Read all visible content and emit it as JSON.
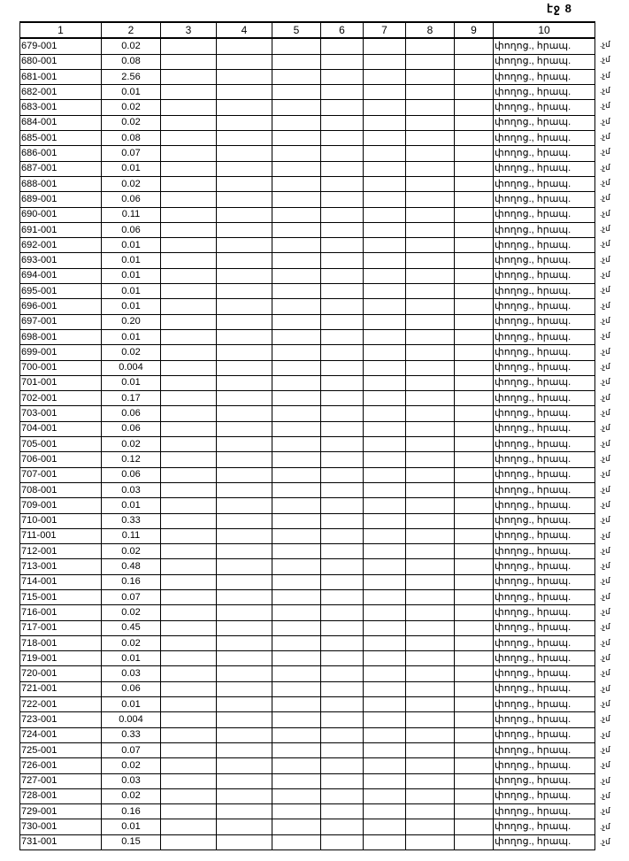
{
  "page_label": "էջ 8",
  "columns": [
    "1",
    "2",
    "3",
    "4",
    "5",
    "6",
    "7",
    "8",
    "9",
    "10"
  ],
  "row_text_col10": "փողոց., հրապ.",
  "margin_mark": ".չմ",
  "rows": [
    [
      "679-001",
      "0.02"
    ],
    [
      "680-001",
      "0.08"
    ],
    [
      "681-001",
      "2.56"
    ],
    [
      "682-001",
      "0.01"
    ],
    [
      "683-001",
      "0.02"
    ],
    [
      "684-001",
      "0.02"
    ],
    [
      "685-001",
      "0.08"
    ],
    [
      "686-001",
      "0.07"
    ],
    [
      "687-001",
      "0.01"
    ],
    [
      "688-001",
      "0.02"
    ],
    [
      "689-001",
      "0.06"
    ],
    [
      "690-001",
      "0.11"
    ],
    [
      "691-001",
      "0.06"
    ],
    [
      "692-001",
      "0.01"
    ],
    [
      "693-001",
      "0.01"
    ],
    [
      "694-001",
      "0.01"
    ],
    [
      "695-001",
      "0.01"
    ],
    [
      "696-001",
      "0.01"
    ],
    [
      "697-001",
      "0.20"
    ],
    [
      "698-001",
      "0.01"
    ],
    [
      "699-001",
      "0.02"
    ],
    [
      "700-001",
      "0.004"
    ],
    [
      "701-001",
      "0.01"
    ],
    [
      "702-001",
      "0.17"
    ],
    [
      "703-001",
      "0.06"
    ],
    [
      "704-001",
      "0.06"
    ],
    [
      "705-001",
      "0.02"
    ],
    [
      "706-001",
      "0.12"
    ],
    [
      "707-001",
      "0.06"
    ],
    [
      "708-001",
      "0.03"
    ],
    [
      "709-001",
      "0.01"
    ],
    [
      "710-001",
      "0.33"
    ],
    [
      "711-001",
      "0.11"
    ],
    [
      "712-001",
      "0.02"
    ],
    [
      "713-001",
      "0.48"
    ],
    [
      "714-001",
      "0.16"
    ],
    [
      "715-001",
      "0.07"
    ],
    [
      "716-001",
      "0.02"
    ],
    [
      "717-001",
      "0.45"
    ],
    [
      "718-001",
      "0.02"
    ],
    [
      "719-001",
      "0.01"
    ],
    [
      "720-001",
      "0.03"
    ],
    [
      "721-001",
      "0.06"
    ],
    [
      "722-001",
      "0.01"
    ],
    [
      "723-001",
      "0.004"
    ],
    [
      "724-001",
      "0.33"
    ],
    [
      "725-001",
      "0.07"
    ],
    [
      "726-001",
      "0.02"
    ],
    [
      "727-001",
      "0.03"
    ],
    [
      "728-001",
      "0.02"
    ],
    [
      "729-001",
      "0.16"
    ],
    [
      "730-001",
      "0.01"
    ],
    [
      "731-001",
      "0.15"
    ]
  ]
}
